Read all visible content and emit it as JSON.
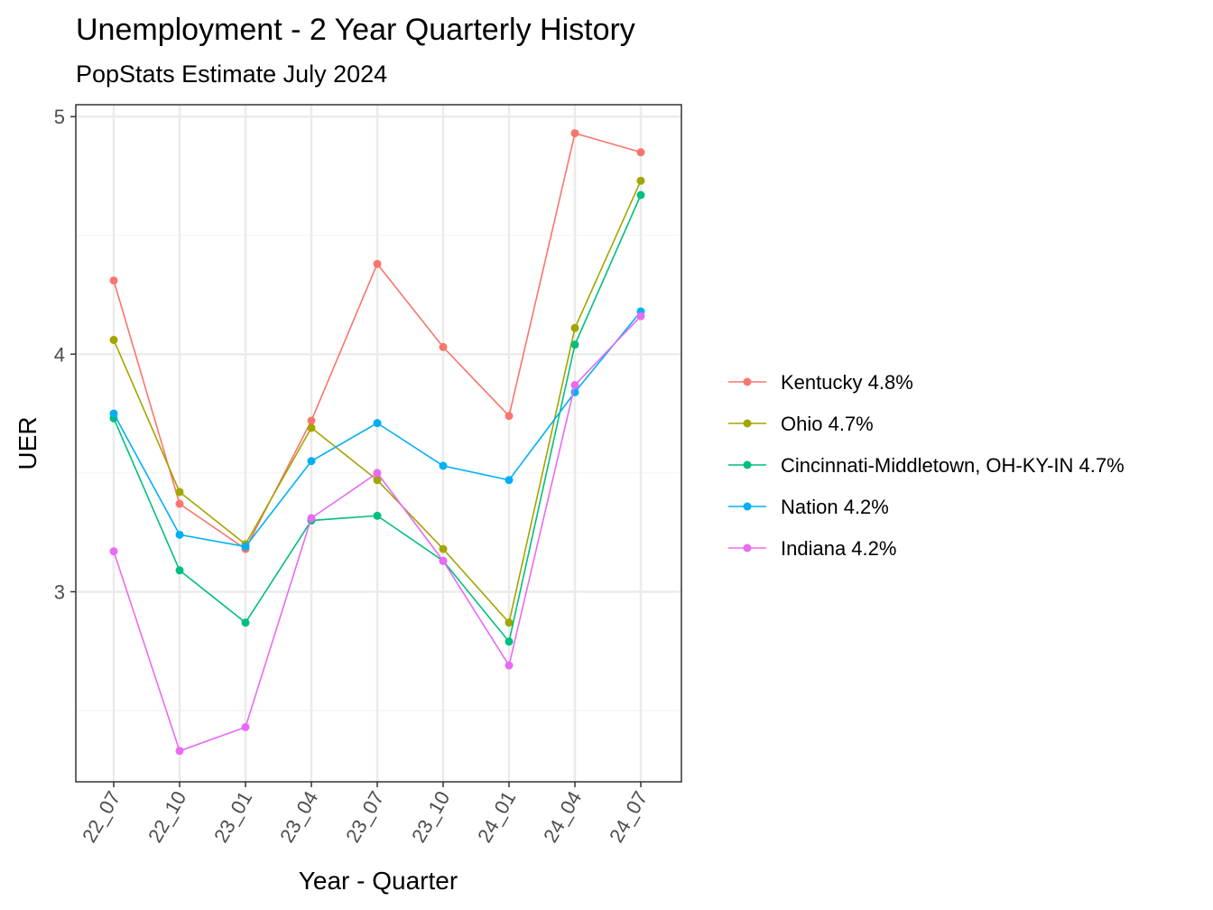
{
  "chart_data": {
    "type": "line",
    "title": "Unemployment - 2 Year Quarterly History",
    "subtitle": "PopStats Estimate July 2024",
    "xlabel": "Year - Quarter",
    "ylabel": "UER",
    "categories": [
      "22_07",
      "22_10",
      "23_01",
      "23_04",
      "23_07",
      "23_10",
      "24_01",
      "24_04",
      "24_07"
    ],
    "ylim": [
      2.2,
      5.05
    ],
    "yticks": [
      3,
      4,
      5
    ],
    "grid": true,
    "legend_position": "right",
    "series": [
      {
        "name": "Kentucky 4.8%",
        "color": "#F8766D",
        "values": [
          4.31,
          3.37,
          3.18,
          3.72,
          4.38,
          4.03,
          3.74,
          4.93,
          4.85
        ]
      },
      {
        "name": "Ohio 4.7%",
        "color": "#A3A500",
        "values": [
          4.06,
          3.42,
          3.2,
          3.69,
          3.47,
          3.18,
          2.87,
          4.11,
          4.73
        ]
      },
      {
        "name": "Cincinnati-Middletown, OH-KY-IN 4.7%",
        "color": "#00BF7D",
        "values": [
          3.73,
          3.09,
          2.87,
          3.3,
          3.32,
          3.13,
          2.79,
          4.04,
          4.67
        ]
      },
      {
        "name": "Nation 4.2%",
        "color": "#00B0F6",
        "values": [
          3.75,
          3.24,
          3.19,
          3.55,
          3.71,
          3.53,
          3.47,
          3.84,
          4.18
        ]
      },
      {
        "name": "Indiana 4.2%",
        "color": "#E76BF3",
        "values": [
          3.17,
          2.33,
          2.43,
          3.31,
          3.5,
          3.13,
          2.69,
          3.87,
          4.16
        ]
      }
    ]
  }
}
